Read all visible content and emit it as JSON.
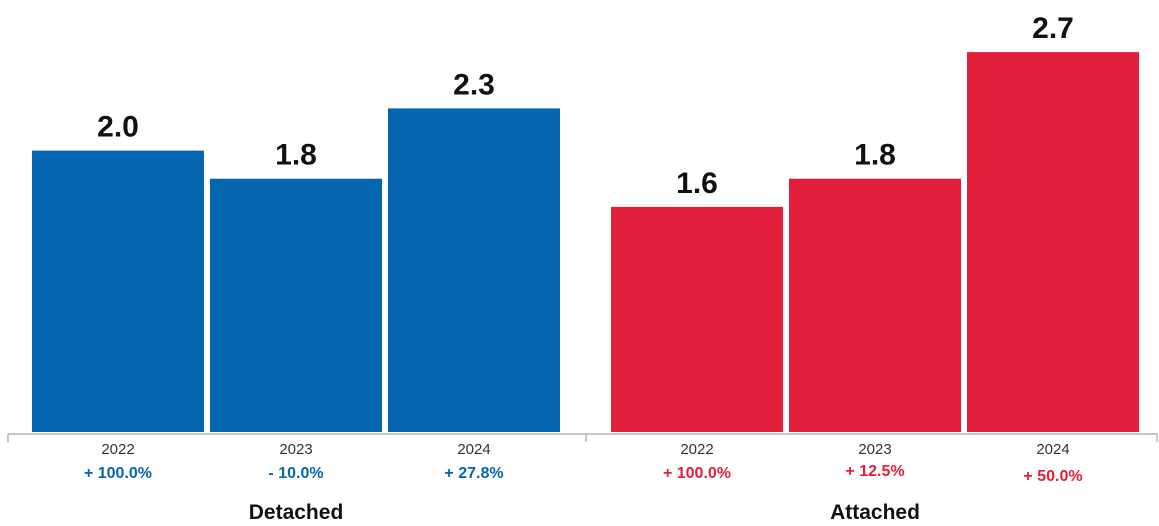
{
  "chart_data": {
    "type": "bar",
    "ylim": [
      0,
      2.7
    ],
    "groups": [
      {
        "name": "Detached",
        "color": "#0466ae",
        "bars": [
          {
            "year": "2022",
            "value": 2.0,
            "value_label": "2.0",
            "change": "+ 100.0%"
          },
          {
            "year": "2023",
            "value": 1.8,
            "value_label": "1.8",
            "change": "- 10.0%"
          },
          {
            "year": "2024",
            "value": 2.3,
            "value_label": "2.3",
            "change": "+ 27.8%"
          }
        ]
      },
      {
        "name": "Attached",
        "color": "#e21f3a",
        "bars": [
          {
            "year": "2022",
            "value": 1.6,
            "value_label": "1.6",
            "change": "+ 100.0%"
          },
          {
            "year": "2023",
            "value": 1.8,
            "value_label": "1.8",
            "change": "+ 12.5%"
          },
          {
            "year": "2024",
            "value": 2.7,
            "value_label": "2.7",
            "change": "+ 50.0%"
          }
        ]
      }
    ],
    "axis_color": "#b5b5b5"
  }
}
